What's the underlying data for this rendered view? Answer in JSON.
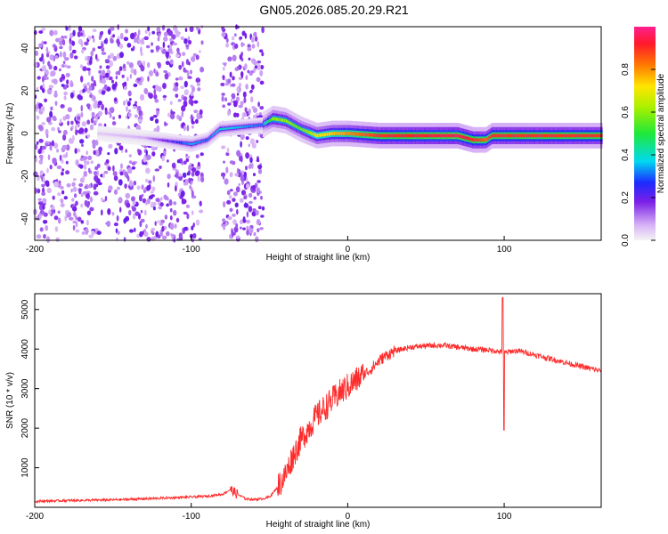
{
  "title": "GN05.2026.085.20.29.R21",
  "chart_data": [
    {
      "type": "heatmap",
      "xlabel": "Height of straight line (km)",
      "ylabel": "Frequency (Hz)",
      "xlim": [
        -200,
        162
      ],
      "ylim": [
        -50,
        50
      ],
      "xticks": [
        -200,
        -100,
        0,
        100
      ],
      "yticks": [
        -40,
        -20,
        0,
        20,
        40
      ],
      "colorbar": {
        "label": "Normalized spectral amplitude",
        "range": [
          0,
          1
        ],
        "ticks": [
          "0.0",
          "0.2",
          "0.4",
          "0.6",
          "0.8"
        ]
      },
      "ridge": [
        {
          "x": -160,
          "y": 0,
          "amp": 0.05
        },
        {
          "x": -130,
          "y": -2,
          "amp": 0.08
        },
        {
          "x": -110,
          "y": -4,
          "amp": 0.25
        },
        {
          "x": -100,
          "y": -5,
          "amp": 0.35
        },
        {
          "x": -90,
          "y": -3,
          "amp": 0.3
        },
        {
          "x": -82,
          "y": 2,
          "amp": 0.4
        },
        {
          "x": -55,
          "y": 4,
          "amp": 0.3
        },
        {
          "x": -48,
          "y": 7,
          "amp": 0.6
        },
        {
          "x": -40,
          "y": 6,
          "amp": 0.6
        },
        {
          "x": -30,
          "y": 2,
          "amp": 0.55
        },
        {
          "x": -20,
          "y": -1,
          "amp": 0.7
        },
        {
          "x": -10,
          "y": 0,
          "amp": 0.75
        },
        {
          "x": 0,
          "y": 0,
          "amp": 0.8
        },
        {
          "x": 20,
          "y": -1,
          "amp": 0.9
        },
        {
          "x": 70,
          "y": -1,
          "amp": 0.95
        },
        {
          "x": 80,
          "y": -3,
          "amp": 0.9
        },
        {
          "x": 88,
          "y": -3,
          "amp": 0.85
        },
        {
          "x": 92,
          "y": -1,
          "amp": 0.9
        },
        {
          "x": 162,
          "y": -1,
          "amp": 0.9
        }
      ]
    },
    {
      "type": "line",
      "xlabel": "Height of straight line (km)",
      "ylabel": "SNR (10 * v/v)",
      "xlim": [
        -200,
        162
      ],
      "ylim": [
        0,
        5400
      ],
      "xticks": [
        -200,
        -100,
        0,
        100
      ],
      "yticks": [
        1000,
        2000,
        3000,
        4000,
        5000
      ],
      "color": "#ff2a2a",
      "series": [
        {
          "x": [
            -200,
            -180,
            -160,
            -140,
            -120,
            -100,
            -90,
            -80,
            -75,
            -70,
            -65,
            -60,
            -55,
            -50,
            -45,
            -40,
            -35,
            -30,
            -25,
            -20,
            -15,
            -10,
            -5,
            0,
            5,
            10,
            15,
            20,
            25,
            30,
            35,
            40,
            50,
            60,
            70,
            80,
            90,
            95,
            100,
            105,
            110,
            120,
            130,
            140,
            150,
            162
          ],
          "y": [
            150,
            170,
            180,
            200,
            230,
            260,
            280,
            330,
            450,
            320,
            210,
            200,
            210,
            260,
            500,
            800,
            1300,
            1700,
            2000,
            2300,
            2500,
            2700,
            2900,
            3050,
            3200,
            3350,
            3500,
            3700,
            3850,
            3950,
            4000,
            4050,
            4080,
            4100,
            4050,
            4000,
            3980,
            3950,
            3900,
            3950,
            3950,
            3850,
            3750,
            3650,
            3550,
            3450
          ]
        }
      ]
    }
  ]
}
